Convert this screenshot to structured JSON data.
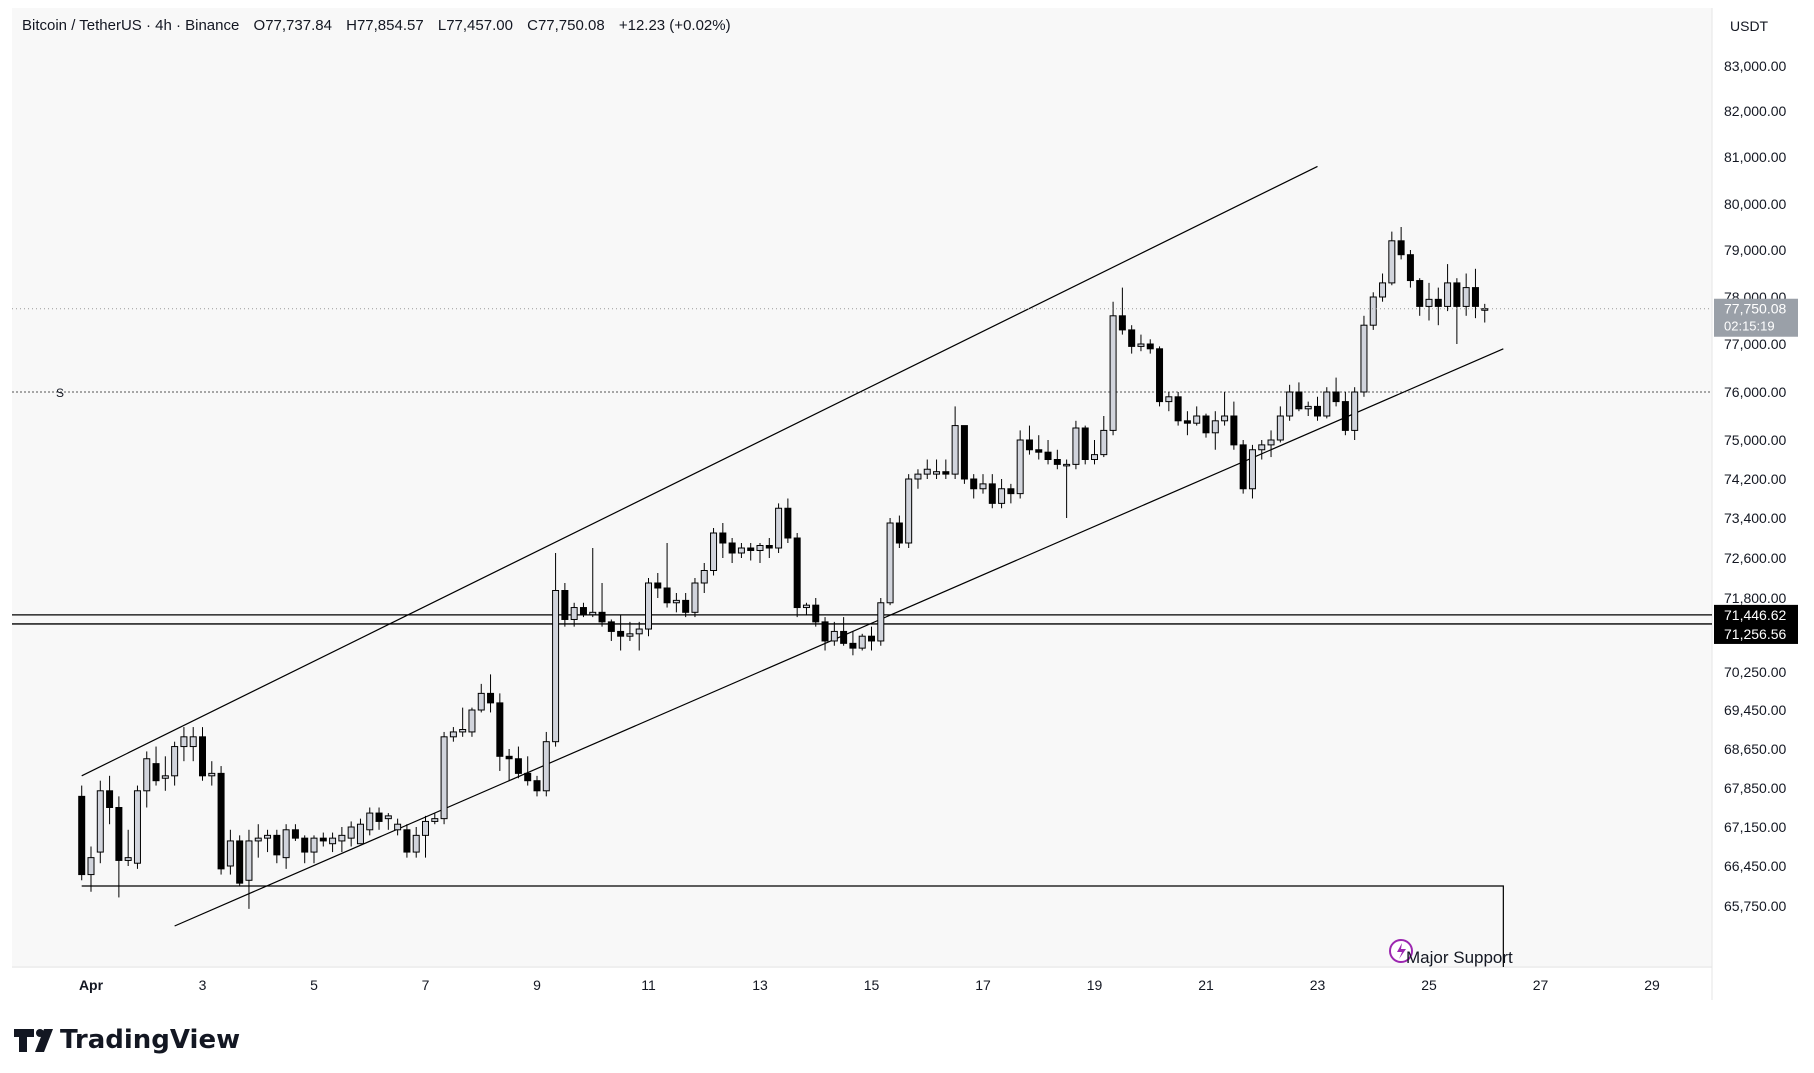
{
  "header": {
    "symbol": "Bitcoin / TetherUS · 4h · Binance",
    "open_label": "O",
    "open": "77,737.84",
    "high_label": "H",
    "high": "77,854.57",
    "low_label": "L",
    "low": "77,457.00",
    "close_label": "C",
    "close": "77,750.08",
    "change": "+12.23 (+0.02%)"
  },
  "currency": "USDT",
  "price_labels": [
    "83,000.00",
    "82,000.00",
    "81,000.00",
    "80,000.00",
    "79,000.00",
    "78,000.00",
    "77,000.00",
    "76,000.00",
    "75,000.00",
    "74,200.00",
    "73,400.00",
    "72,600.00",
    "71,800.00",
    "70,250.00",
    "69,450.00",
    "68,650.00",
    "67,850.00",
    "67,150.00",
    "66,450.00",
    "65,750.00"
  ],
  "date_labels": [
    "Apr",
    "3",
    "5",
    "7",
    "9",
    "11",
    "13",
    "15",
    "17",
    "19",
    "21",
    "23",
    "25",
    "27",
    "29"
  ],
  "last_price": {
    "value": "77,750.08",
    "countdown": "02:15:19"
  },
  "level_tags": [
    "71,446.62",
    "71,256.56"
  ],
  "dotted_marker": "S",
  "annotation": "Major Support",
  "brand": "TradingView",
  "colors": {
    "up_body": "#d1d4dc",
    "down_body": "#000000",
    "wick": "#000000",
    "background": "#f8f8f8",
    "line": "#000000"
  },
  "chart_data": {
    "type": "candlestick",
    "interval": "4h",
    "xlabel": "",
    "ylabel": "",
    "ylim": [
      65300,
      84000
    ],
    "x_start": "2024-03-31T20:00",
    "candles": [
      {
        "o": 67700,
        "h": 67900,
        "l": 66200,
        "c": 66300
      },
      {
        "o": 66300,
        "h": 66800,
        "l": 66000,
        "c": 66600
      },
      {
        "o": 66700,
        "h": 68000,
        "l": 66500,
        "c": 67800
      },
      {
        "o": 67800,
        "h": 68100,
        "l": 67200,
        "c": 67500
      },
      {
        "o": 67500,
        "h": 67700,
        "l": 65900,
        "c": 66550
      },
      {
        "o": 66550,
        "h": 67100,
        "l": 66450,
        "c": 66600
      },
      {
        "o": 66500,
        "h": 67900,
        "l": 66400,
        "c": 67800
      },
      {
        "o": 67800,
        "h": 68600,
        "l": 67500,
        "c": 68450
      },
      {
        "o": 68350,
        "h": 68700,
        "l": 67900,
        "c": 68000
      },
      {
        "o": 68050,
        "h": 68500,
        "l": 67800,
        "c": 68100
      },
      {
        "o": 68100,
        "h": 68800,
        "l": 67900,
        "c": 68700
      },
      {
        "o": 68700,
        "h": 69100,
        "l": 68400,
        "c": 68900
      },
      {
        "o": 68700,
        "h": 69100,
        "l": 68400,
        "c": 68900
      },
      {
        "o": 68900,
        "h": 69100,
        "l": 68000,
        "c": 68100
      },
      {
        "o": 68100,
        "h": 68400,
        "l": 67900,
        "c": 68150
      },
      {
        "o": 68150,
        "h": 68300,
        "l": 66300,
        "c": 66400
      },
      {
        "o": 66450,
        "h": 67100,
        "l": 66300,
        "c": 66900
      },
      {
        "o": 66900,
        "h": 67000,
        "l": 66100,
        "c": 66150
      },
      {
        "o": 66200,
        "h": 67100,
        "l": 65700,
        "c": 66900
      },
      {
        "o": 66900,
        "h": 67200,
        "l": 66600,
        "c": 66950
      },
      {
        "o": 66950,
        "h": 67100,
        "l": 66700,
        "c": 67000
      },
      {
        "o": 67000,
        "h": 67100,
        "l": 66500,
        "c": 66650
      },
      {
        "o": 66600,
        "h": 67200,
        "l": 66400,
        "c": 67100
      },
      {
        "o": 67100,
        "h": 67200,
        "l": 66900,
        "c": 66950
      },
      {
        "o": 66950,
        "h": 67000,
        "l": 66500,
        "c": 66700
      },
      {
        "o": 66700,
        "h": 67000,
        "l": 66500,
        "c": 66950
      },
      {
        "o": 66950,
        "h": 67050,
        "l": 66800,
        "c": 66900
      },
      {
        "o": 66850,
        "h": 67050,
        "l": 66700,
        "c": 66950
      },
      {
        "o": 66900,
        "h": 67150,
        "l": 66700,
        "c": 67000
      },
      {
        "o": 66950,
        "h": 67250,
        "l": 66800,
        "c": 67150
      },
      {
        "o": 66850,
        "h": 67300,
        "l": 66900,
        "c": 67200
      },
      {
        "o": 67100,
        "h": 67500,
        "l": 67000,
        "c": 67400
      },
      {
        "o": 67400,
        "h": 67500,
        "l": 67100,
        "c": 67250
      },
      {
        "o": 67300,
        "h": 67400,
        "l": 67100,
        "c": 67350
      },
      {
        "o": 67100,
        "h": 67300,
        "l": 67000,
        "c": 67200
      },
      {
        "o": 67100,
        "h": 67200,
        "l": 66600,
        "c": 66700
      },
      {
        "o": 66700,
        "h": 67150,
        "l": 66600,
        "c": 67000
      },
      {
        "o": 67000,
        "h": 67350,
        "l": 66600,
        "c": 67250
      },
      {
        "o": 67250,
        "h": 67400,
        "l": 67200,
        "c": 67300
      },
      {
        "o": 67300,
        "h": 69000,
        "l": 67200,
        "c": 68900
      },
      {
        "o": 68900,
        "h": 69100,
        "l": 68800,
        "c": 69000
      },
      {
        "o": 69000,
        "h": 69500,
        "l": 68900,
        "c": 69050
      },
      {
        "o": 69000,
        "h": 69500,
        "l": 68900,
        "c": 69450
      },
      {
        "o": 69450,
        "h": 70000,
        "l": 69400,
        "c": 69800
      },
      {
        "o": 69800,
        "h": 70200,
        "l": 69400,
        "c": 69600
      },
      {
        "o": 69600,
        "h": 69800,
        "l": 68200,
        "c": 68500
      },
      {
        "o": 68500,
        "h": 68650,
        "l": 68000,
        "c": 68450
      },
      {
        "o": 68450,
        "h": 68700,
        "l": 68050,
        "c": 68150
      },
      {
        "o": 68150,
        "h": 68500,
        "l": 67900,
        "c": 68000
      },
      {
        "o": 68000,
        "h": 68100,
        "l": 67700,
        "c": 67800
      },
      {
        "o": 67800,
        "h": 69000,
        "l": 67700,
        "c": 68800
      },
      {
        "o": 68800,
        "h": 72700,
        "l": 68700,
        "c": 71950
      },
      {
        "o": 71950,
        "h": 72100,
        "l": 71200,
        "c": 71350
      },
      {
        "o": 71350,
        "h": 71700,
        "l": 71200,
        "c": 71600
      },
      {
        "o": 71600,
        "h": 71700,
        "l": 71400,
        "c": 71450
      },
      {
        "o": 71450,
        "h": 72800,
        "l": 71400,
        "c": 71500
      },
      {
        "o": 71500,
        "h": 72100,
        "l": 71200,
        "c": 71300
      },
      {
        "o": 71300,
        "h": 71350,
        "l": 70900,
        "c": 71100
      },
      {
        "o": 71100,
        "h": 71450,
        "l": 70700,
        "c": 71000
      },
      {
        "o": 71000,
        "h": 71300,
        "l": 70900,
        "c": 71050
      },
      {
        "o": 71050,
        "h": 71300,
        "l": 70700,
        "c": 71150
      },
      {
        "o": 71150,
        "h": 72200,
        "l": 71000,
        "c": 72100
      },
      {
        "o": 72100,
        "h": 72300,
        "l": 71800,
        "c": 72000
      },
      {
        "o": 72000,
        "h": 72900,
        "l": 71600,
        "c": 71700
      },
      {
        "o": 71700,
        "h": 71900,
        "l": 71500,
        "c": 71750
      },
      {
        "o": 71750,
        "h": 71900,
        "l": 71400,
        "c": 71500
      },
      {
        "o": 71500,
        "h": 72200,
        "l": 71400,
        "c": 72100
      },
      {
        "o": 72100,
        "h": 72500,
        "l": 71900,
        "c": 72350
      },
      {
        "o": 72350,
        "h": 73200,
        "l": 72250,
        "c": 73100
      },
      {
        "o": 73100,
        "h": 73300,
        "l": 72600,
        "c": 72900
      },
      {
        "o": 72900,
        "h": 73000,
        "l": 72500,
        "c": 72700
      },
      {
        "o": 72700,
        "h": 72900,
        "l": 72600,
        "c": 72800
      },
      {
        "o": 72800,
        "h": 72900,
        "l": 72550,
        "c": 72750
      },
      {
        "o": 72750,
        "h": 72900,
        "l": 72500,
        "c": 72850
      },
      {
        "o": 72850,
        "h": 73000,
        "l": 72600,
        "c": 72800
      },
      {
        "o": 72800,
        "h": 73700,
        "l": 72700,
        "c": 73600
      },
      {
        "o": 73600,
        "h": 73800,
        "l": 72900,
        "c": 73000
      },
      {
        "o": 73000,
        "h": 73100,
        "l": 71400,
        "c": 71600
      },
      {
        "o": 71600,
        "h": 71700,
        "l": 71450,
        "c": 71650
      },
      {
        "o": 71650,
        "h": 71800,
        "l": 71200,
        "c": 71300
      },
      {
        "o": 71300,
        "h": 71400,
        "l": 70700,
        "c": 70900
      },
      {
        "o": 70900,
        "h": 71300,
        "l": 70800,
        "c": 71100
      },
      {
        "o": 71100,
        "h": 71400,
        "l": 70800,
        "c": 70850
      },
      {
        "o": 70850,
        "h": 71100,
        "l": 70600,
        "c": 70750
      },
      {
        "o": 70750,
        "h": 71050,
        "l": 70700,
        "c": 71000
      },
      {
        "o": 71000,
        "h": 71200,
        "l": 70700,
        "c": 70900
      },
      {
        "o": 70900,
        "h": 71800,
        "l": 70800,
        "c": 71700
      },
      {
        "o": 71700,
        "h": 73400,
        "l": 71650,
        "c": 73300
      },
      {
        "o": 73300,
        "h": 73450,
        "l": 72800,
        "c": 72900
      },
      {
        "o": 72900,
        "h": 74300,
        "l": 72800,
        "c": 74200
      },
      {
        "o": 74200,
        "h": 74400,
        "l": 74000,
        "c": 74300
      },
      {
        "o": 74300,
        "h": 74600,
        "l": 74200,
        "c": 74400
      },
      {
        "o": 74300,
        "h": 74600,
        "l": 74200,
        "c": 74350
      },
      {
        "o": 74350,
        "h": 74600,
        "l": 74200,
        "c": 74300
      },
      {
        "o": 74300,
        "h": 75700,
        "l": 74200,
        "c": 75300
      },
      {
        "o": 75300,
        "h": 75300,
        "l": 74100,
        "c": 74200
      },
      {
        "o": 74200,
        "h": 74300,
        "l": 73800,
        "c": 74000
      },
      {
        "o": 74000,
        "h": 74300,
        "l": 73900,
        "c": 74100
      },
      {
        "o": 74100,
        "h": 74300,
        "l": 73600,
        "c": 73700
      },
      {
        "o": 73700,
        "h": 74200,
        "l": 73600,
        "c": 74000
      },
      {
        "o": 74000,
        "h": 74100,
        "l": 73700,
        "c": 73900
      },
      {
        "o": 73900,
        "h": 75200,
        "l": 73800,
        "c": 75000
      },
      {
        "o": 75000,
        "h": 75300,
        "l": 74700,
        "c": 74800
      },
      {
        "o": 74800,
        "h": 75100,
        "l": 74600,
        "c": 74750
      },
      {
        "o": 74750,
        "h": 75000,
        "l": 74500,
        "c": 74600
      },
      {
        "o": 74600,
        "h": 74800,
        "l": 74400,
        "c": 74500
      },
      {
        "o": 74500,
        "h": 74600,
        "l": 73400,
        "c": 74500
      },
      {
        "o": 74500,
        "h": 75400,
        "l": 74400,
        "c": 75250
      },
      {
        "o": 75250,
        "h": 75300,
        "l": 74500,
        "c": 74600
      },
      {
        "o": 74600,
        "h": 75000,
        "l": 74500,
        "c": 74700
      },
      {
        "o": 74700,
        "h": 75500,
        "l": 74650,
        "c": 75200
      },
      {
        "o": 75200,
        "h": 77900,
        "l": 75100,
        "c": 77600
      },
      {
        "o": 77600,
        "h": 78200,
        "l": 77200,
        "c": 77300
      },
      {
        "o": 77300,
        "h": 77400,
        "l": 76800,
        "c": 76950
      },
      {
        "o": 76950,
        "h": 77200,
        "l": 76850,
        "c": 77000
      },
      {
        "o": 77000,
        "h": 77100,
        "l": 76800,
        "c": 76900
      },
      {
        "o": 76900,
        "h": 76950,
        "l": 75700,
        "c": 75800
      },
      {
        "o": 75800,
        "h": 76000,
        "l": 75600,
        "c": 75900
      },
      {
        "o": 75900,
        "h": 76000,
        "l": 75300,
        "c": 75400
      },
      {
        "o": 75400,
        "h": 75600,
        "l": 75100,
        "c": 75350
      },
      {
        "o": 75350,
        "h": 75700,
        "l": 75300,
        "c": 75500
      },
      {
        "o": 75500,
        "h": 75550,
        "l": 75050,
        "c": 75150
      },
      {
        "o": 75150,
        "h": 75600,
        "l": 74800,
        "c": 75400
      },
      {
        "o": 75400,
        "h": 76000,
        "l": 75300,
        "c": 75500
      },
      {
        "o": 75500,
        "h": 75800,
        "l": 74800,
        "c": 74900
      },
      {
        "o": 74900,
        "h": 75000,
        "l": 73900,
        "c": 74000
      },
      {
        "o": 74000,
        "h": 74900,
        "l": 73800,
        "c": 74800
      },
      {
        "o": 74800,
        "h": 75000,
        "l": 74600,
        "c": 74900
      },
      {
        "o": 74900,
        "h": 75200,
        "l": 74650,
        "c": 75000
      },
      {
        "o": 75000,
        "h": 75700,
        "l": 74950,
        "c": 75500
      },
      {
        "o": 75500,
        "h": 76150,
        "l": 75400,
        "c": 76000
      },
      {
        "o": 76000,
        "h": 76200,
        "l": 75600,
        "c": 75650
      },
      {
        "o": 75650,
        "h": 75800,
        "l": 75500,
        "c": 75700
      },
      {
        "o": 75700,
        "h": 75900,
        "l": 75400,
        "c": 75500
      },
      {
        "o": 75500,
        "h": 76100,
        "l": 75450,
        "c": 76000
      },
      {
        "o": 76000,
        "h": 76300,
        "l": 75700,
        "c": 75800
      },
      {
        "o": 75800,
        "h": 76000,
        "l": 75100,
        "c": 75200
      },
      {
        "o": 75200,
        "h": 76100,
        "l": 75000,
        "c": 76000
      },
      {
        "o": 76000,
        "h": 77600,
        "l": 75900,
        "c": 77400
      },
      {
        "o": 77400,
        "h": 78100,
        "l": 77300,
        "c": 78000
      },
      {
        "o": 78000,
        "h": 78500,
        "l": 77900,
        "c": 78300
      },
      {
        "o": 78300,
        "h": 79400,
        "l": 78250,
        "c": 79200
      },
      {
        "o": 79200,
        "h": 79500,
        "l": 78800,
        "c": 78900
      },
      {
        "o": 78900,
        "h": 79000,
        "l": 78200,
        "c": 78350
      },
      {
        "o": 78350,
        "h": 78400,
        "l": 77600,
        "c": 77800
      },
      {
        "o": 77800,
        "h": 78300,
        "l": 77500,
        "c": 77950
      },
      {
        "o": 77950,
        "h": 78200,
        "l": 77400,
        "c": 77800
      },
      {
        "o": 77800,
        "h": 78700,
        "l": 77700,
        "c": 78300
      },
      {
        "o": 78300,
        "h": 78400,
        "l": 77000,
        "c": 77800
      },
      {
        "o": 77800,
        "h": 78500,
        "l": 77600,
        "c": 78200
      },
      {
        "o": 78200,
        "h": 78600,
        "l": 77550,
        "c": 77800
      },
      {
        "o": 77737,
        "h": 77854,
        "l": 77457,
        "c": 77750
      }
    ],
    "price_lines": [
      71446.62,
      71256.56
    ],
    "dotted_level": 76000,
    "channel": {
      "upper": [
        {
          "t": "2024-03-31T20:00",
          "p": 68100
        },
        {
          "t": "2024-04-23T00:00",
          "p": 80800
        }
      ],
      "lower": [
        {
          "t": "2024-04-02T12:00",
          "p": 65400
        },
        {
          "t": "2024-04-26T08:00",
          "p": 76900
        }
      ]
    },
    "support_box": {
      "from": "2024-03-31T20:00",
      "to": "2024-04-26T08:00",
      "top": 66100
    }
  }
}
